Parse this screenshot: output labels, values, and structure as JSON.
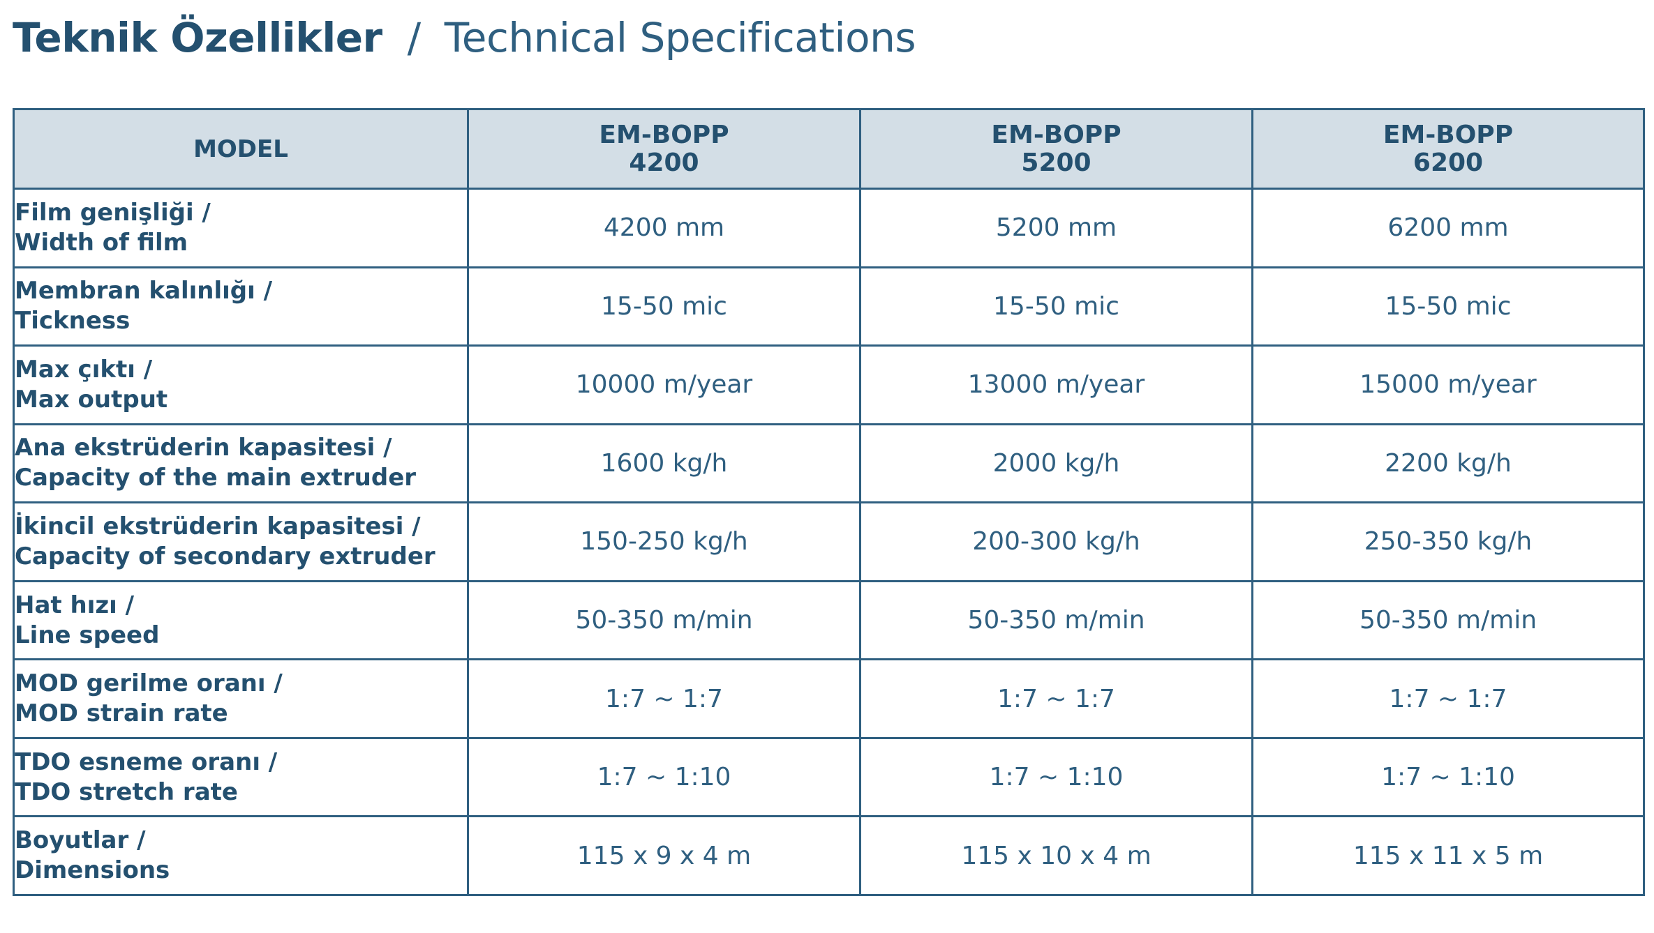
{
  "title": {
    "turkish": "Teknik Özellikler",
    "separator": "/",
    "english": "Technical Specifications"
  },
  "table": {
    "model_header": "MODEL",
    "models": [
      {
        "line1": "EM-BOPP",
        "line2": "4200"
      },
      {
        "line1": "EM-BOPP",
        "line2": "5200"
      },
      {
        "line1": "EM-BOPP",
        "line2": "6200"
      }
    ],
    "rows": [
      {
        "label_tr": "Film genişliği /",
        "label_en": "Width of film",
        "values": [
          "4200 mm",
          "5200 mm",
          "6200 mm"
        ]
      },
      {
        "label_tr": "Membran kalınlığı /",
        "label_en": "Tickness",
        "values": [
          "15-50 mic",
          "15-50 mic",
          "15-50 mic"
        ]
      },
      {
        "label_tr": "Max çıktı /",
        "label_en": "Max output",
        "values": [
          "10000 m/year",
          "13000 m/year",
          "15000 m/year"
        ]
      },
      {
        "label_tr": "Ana ekstrüderin kapasitesi /",
        "label_en": "Capacity of the main extruder",
        "values": [
          "1600 kg/h",
          "2000 kg/h",
          "2200 kg/h"
        ]
      },
      {
        "label_tr": "İkincil ekstrüderin kapasitesi /",
        "label_en": "Capacity of secondary extruder",
        "values": [
          "150-250 kg/h",
          "200-300 kg/h",
          "250-350 kg/h"
        ]
      },
      {
        "label_tr": "Hat hızı /",
        "label_en": "Line speed",
        "values": [
          "50-350 m/min",
          "50-350 m/min",
          "50-350 m/min"
        ]
      },
      {
        "label_tr": "MOD gerilme oranı /",
        "label_en": "MOD strain rate",
        "values": [
          "1:7 ~ 1:7",
          "1:7 ~ 1:7",
          "1:7 ~ 1:7"
        ]
      },
      {
        "label_tr": "TDO esneme oranı /",
        "label_en": "TDO stretch rate",
        "values": [
          "1:7 ~ 1:10",
          "1:7 ~ 1:10",
          "1:7 ~ 1:10"
        ]
      },
      {
        "label_tr": "Boyutlar /",
        "label_en": "Dimensions",
        "values": [
          "115 x 9 x 4 m",
          "115 x 10 x 4 m",
          "115 x 11 x 5 m"
        ]
      }
    ]
  },
  "colors": {
    "text_primary": "#24506f",
    "text_secondary": "#2f5f80",
    "header_background": "#d3dee6",
    "border": "#2f5f80"
  }
}
